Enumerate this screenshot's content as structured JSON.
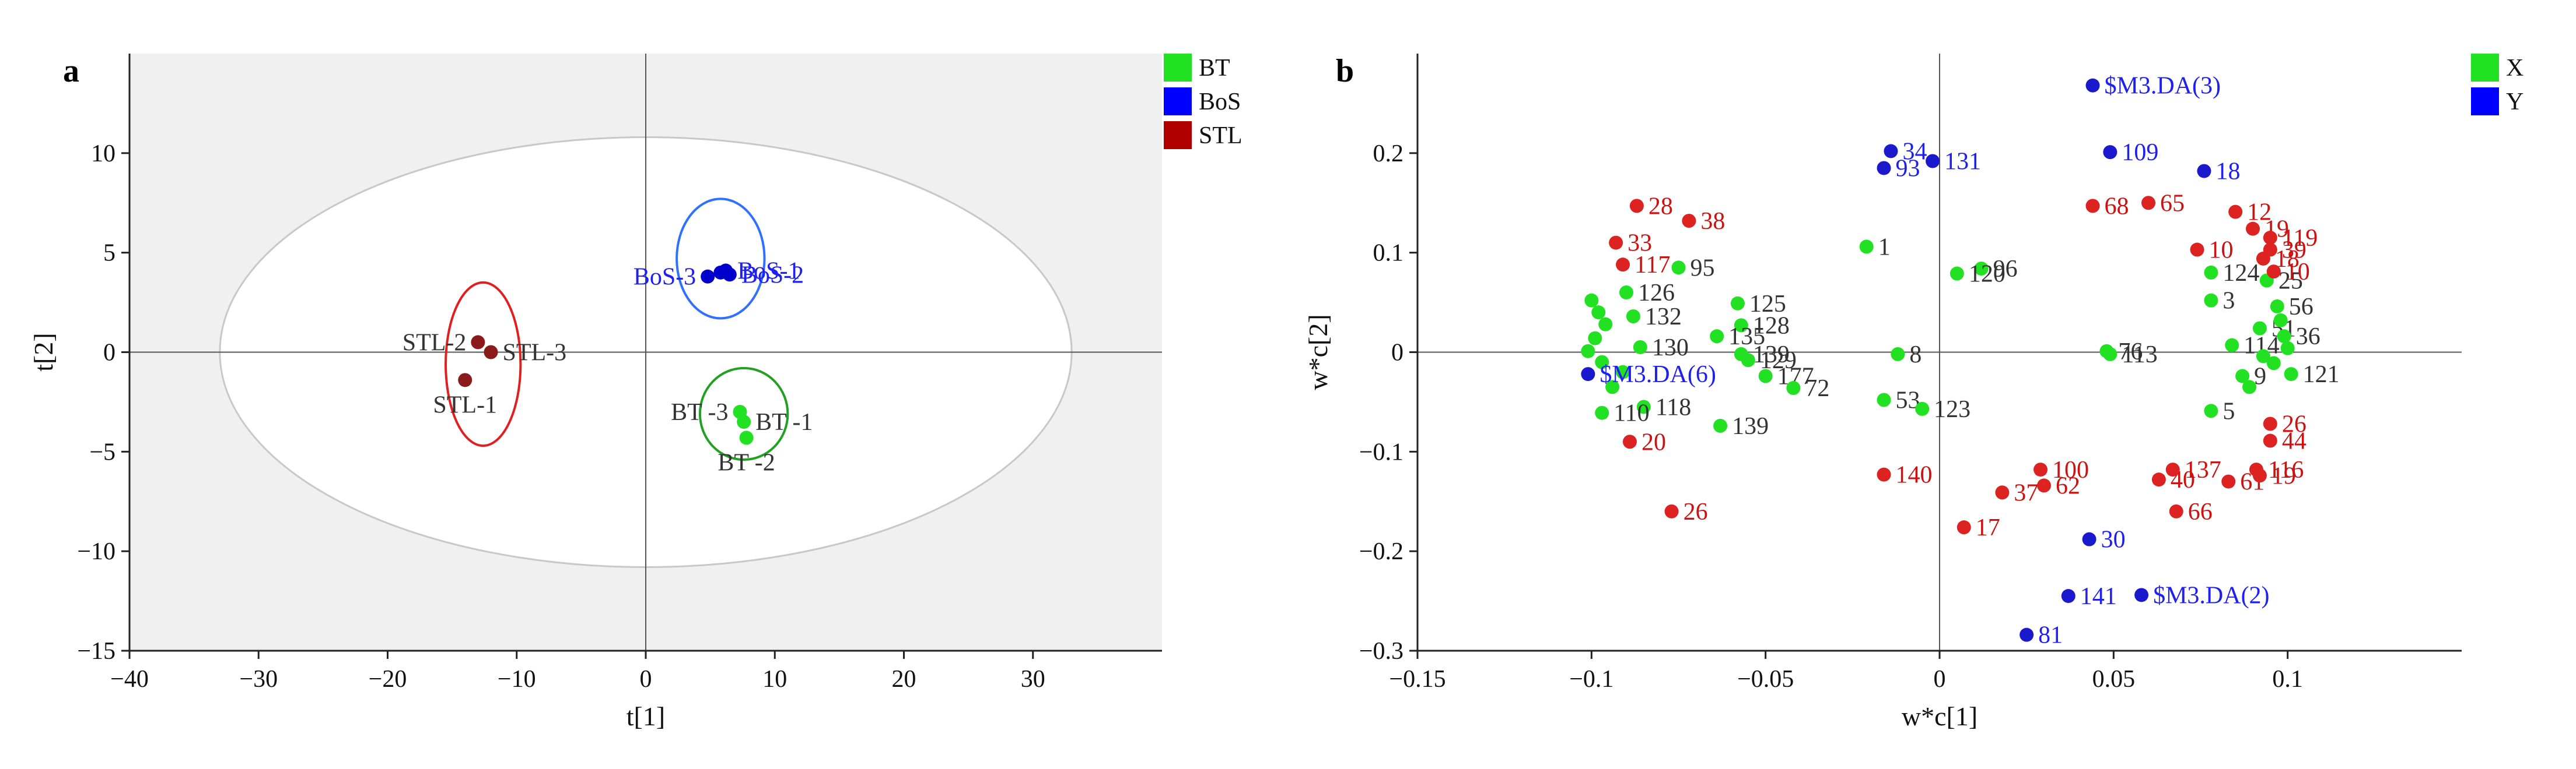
{
  "chart_data": [
    {
      "type": "scatter",
      "panel": "a",
      "xlabel": "t[1]",
      "ylabel": "t[2]",
      "xlim": [
        -40,
        40
      ],
      "ylim": [
        -15,
        15
      ],
      "x_ticks": [
        -40,
        -30,
        -20,
        -10,
        0,
        10,
        20,
        30
      ],
      "y_ticks": [
        -15,
        -10,
        -5,
        0,
        5,
        10
      ],
      "grid": false,
      "shaded_background": true,
      "hotelling_ellipse": {
        "cx": 0,
        "cy": 0,
        "rx": 33,
        "ry": 10.8
      },
      "legend": {
        "placement": "top-right",
        "entries": [
          {
            "label": "BT",
            "color": "#22e022"
          },
          {
            "label": "BoS",
            "color": "#0000ff"
          },
          {
            "label": "STL",
            "color": "#b00000"
          }
        ]
      },
      "series": [
        {
          "name": "BT",
          "color": "#22e022",
          "label_color": "#333333",
          "points": [
            {
              "x": 7.3,
              "y": -3.0,
              "label": "BT -3",
              "label_pos": "left"
            },
            {
              "x": 7.6,
              "y": -3.5,
              "label": "BT -1",
              "label_pos": "right"
            },
            {
              "x": 7.8,
              "y": -4.3,
              "label": "BT -2",
              "label_pos": "below"
            }
          ],
          "group_ellipse": {
            "cx": 7.6,
            "cy": -3.1,
            "rx": 3.4,
            "ry": 2.3,
            "color": "#22a022"
          }
        },
        {
          "name": "BoS",
          "color": "#0000cc",
          "label_color": "#2020ee",
          "points": [
            {
              "x": 4.8,
              "y": 3.8,
              "label": "BoS-3",
              "label_pos": "left"
            },
            {
              "x": 5.8,
              "y": 4.0,
              "label": "",
              "label_pos": "none"
            },
            {
              "x": 6.2,
              "y": 4.1,
              "label": "BoS-1",
              "label_pos": "right"
            },
            {
              "x": 6.5,
              "y": 3.9,
              "label": "BoS-2",
              "label_pos": "right"
            }
          ],
          "group_ellipse": {
            "cx": 5.8,
            "cy": 4.7,
            "rx": 3.4,
            "ry": 3.0,
            "color": "#3070ff"
          }
        },
        {
          "name": "STL",
          "color": "#8b1a1a",
          "label_color": "#333333",
          "points": [
            {
              "x": -13.0,
              "y": 0.5,
              "label": "STL-2",
              "label_pos": "left"
            },
            {
              "x": -12.0,
              "y": 0.0,
              "label": "STL-3",
              "label_pos": "right"
            },
            {
              "x": -14.0,
              "y": -1.4,
              "label": "STL-1",
              "label_pos": "below"
            }
          ],
          "group_ellipse": {
            "cx": -12.6,
            "cy": -0.6,
            "rx": 2.9,
            "ry": 4.1,
            "color": "#e02020"
          }
        }
      ]
    },
    {
      "type": "scatter",
      "panel": "b",
      "xlabel": "w*c[1]",
      "ylabel": "w*c[2]",
      "xlim": [
        -0.15,
        0.15
      ],
      "ylim": [
        -0.3,
        0.3
      ],
      "x_ticks": [
        -0.15,
        -0.1,
        -0.05,
        0,
        0.05,
        0.1
      ],
      "y_ticks": [
        -0.3,
        -0.2,
        -0.1,
        0,
        0.1,
        0.2
      ],
      "grid": false,
      "legend": {
        "placement": "top-right",
        "entries": [
          {
            "label": "X",
            "color": "#22e022"
          },
          {
            "label": "Y",
            "color": "#0000ff"
          }
        ]
      },
      "series": [
        {
          "name": "X (green)",
          "color": "#22e022",
          "label_color": "#333333",
          "points": [
            {
              "x": -0.021,
              "y": 0.106,
              "label": "1"
            },
            {
              "x": 0.012,
              "y": 0.084,
              "label": "96"
            },
            {
              "x": 0.005,
              "y": 0.079,
              "label": "120"
            },
            {
              "x": -0.075,
              "y": 0.085,
              "label": "95"
            },
            {
              "x": -0.058,
              "y": 0.049,
              "label": "125"
            },
            {
              "x": -0.057,
              "y": 0.027,
              "label": "128"
            },
            {
              "x": -0.064,
              "y": 0.016,
              "label": "135"
            },
            {
              "x": -0.057,
              "y": -0.002,
              "label": "139"
            },
            {
              "x": -0.055,
              "y": -0.008,
              "label": "129"
            },
            {
              "x": -0.05,
              "y": -0.024,
              "label": "177"
            },
            {
              "x": -0.042,
              "y": -0.036,
              "label": "72"
            },
            {
              "x": -0.063,
              "y": -0.074,
              "label": "139"
            },
            {
              "x": -0.085,
              "y": -0.055,
              "label": "118"
            },
            {
              "x": -0.097,
              "y": -0.061,
              "label": "110"
            },
            {
              "x": -0.012,
              "y": -0.002,
              "label": "8"
            },
            {
              "x": -0.016,
              "y": -0.048,
              "label": "53"
            },
            {
              "x": -0.005,
              "y": -0.057,
              "label": "123"
            },
            {
              "x": 0.048,
              "y": 0.001,
              "label": "76"
            },
            {
              "x": 0.049,
              "y": -0.002,
              "label": "113"
            },
            {
              "x": 0.078,
              "y": 0.08,
              "label": "124"
            },
            {
              "x": 0.078,
              "y": 0.052,
              "label": "3"
            },
            {
              "x": 0.078,
              "y": -0.059,
              "label": "5"
            },
            {
              "x": 0.084,
              "y": 0.007,
              "label": "114"
            },
            {
              "x": 0.087,
              "y": -0.024,
              "label": "9"
            },
            {
              "x": 0.092,
              "y": 0.024,
              "label": "51"
            },
            {
              "x": 0.094,
              "y": 0.072,
              "label": "25"
            },
            {
              "x": 0.097,
              "y": 0.046,
              "label": "56"
            },
            {
              "x": 0.099,
              "y": 0.016,
              "label": "36"
            },
            {
              "x": 0.101,
              "y": -0.022,
              "label": "121"
            },
            {
              "x": -0.1,
              "y": 0.052,
              "label": ""
            },
            {
              "x": -0.098,
              "y": 0.04,
              "label": ""
            },
            {
              "x": -0.096,
              "y": 0.028,
              "label": ""
            },
            {
              "x": -0.099,
              "y": 0.014,
              "label": ""
            },
            {
              "x": -0.101,
              "y": 0.001,
              "label": ""
            },
            {
              "x": -0.097,
              "y": -0.01,
              "label": ""
            },
            {
              "x": -0.094,
              "y": -0.035,
              "label": ""
            },
            {
              "x": -0.09,
              "y": 0.06,
              "label": "126"
            },
            {
              "x": -0.088,
              "y": 0.036,
              "label": "132"
            },
            {
              "x": -0.086,
              "y": 0.005,
              "label": "130"
            },
            {
              "x": -0.091,
              "y": -0.02,
              "label": ""
            },
            {
              "x": 0.093,
              "y": -0.004,
              "label": ""
            },
            {
              "x": 0.096,
              "y": -0.011,
              "label": ""
            },
            {
              "x": 0.098,
              "y": 0.032,
              "label": ""
            },
            {
              "x": 0.1,
              "y": 0.004,
              "label": ""
            },
            {
              "x": 0.089,
              "y": -0.035,
              "label": ""
            }
          ]
        },
        {
          "name": "X (red)",
          "color": "#dd2222",
          "label_color": "#cc1111",
          "points": [
            {
              "x": -0.087,
              "y": 0.147,
              "label": "28"
            },
            {
              "x": -0.072,
              "y": 0.132,
              "label": "38"
            },
            {
              "x": -0.093,
              "y": 0.11,
              "label": "33"
            },
            {
              "x": -0.091,
              "y": 0.088,
              "label": "117"
            },
            {
              "x": -0.089,
              "y": -0.09,
              "label": "20"
            },
            {
              "x": -0.077,
              "y": -0.16,
              "label": "26"
            },
            {
              "x": -0.016,
              "y": -0.123,
              "label": "140"
            },
            {
              "x": 0.029,
              "y": -0.118,
              "label": "100"
            },
            {
              "x": 0.03,
              "y": -0.134,
              "label": "62"
            },
            {
              "x": 0.018,
              "y": -0.141,
              "label": "37"
            },
            {
              "x": 0.007,
              "y": -0.176,
              "label": "17"
            },
            {
              "x": 0.068,
              "y": -0.16,
              "label": "66"
            },
            {
              "x": 0.063,
              "y": -0.128,
              "label": "40"
            },
            {
              "x": 0.067,
              "y": -0.118,
              "label": "137"
            },
            {
              "x": 0.083,
              "y": -0.13,
              "label": "61"
            },
            {
              "x": 0.091,
              "y": -0.118,
              "label": "116"
            },
            {
              "x": 0.092,
              "y": -0.124,
              "label": "19"
            },
            {
              "x": 0.095,
              "y": -0.089,
              "label": "44"
            },
            {
              "x": 0.095,
              "y": -0.072,
              "label": "26"
            },
            {
              "x": 0.044,
              "y": 0.147,
              "label": "68"
            },
            {
              "x": 0.06,
              "y": 0.15,
              "label": "65"
            },
            {
              "x": 0.074,
              "y": 0.103,
              "label": "10"
            },
            {
              "x": 0.085,
              "y": 0.141,
              "label": "12"
            },
            {
              "x": 0.09,
              "y": 0.124,
              "label": "19"
            },
            {
              "x": 0.095,
              "y": 0.115,
              "label": "119"
            },
            {
              "x": 0.095,
              "y": 0.103,
              "label": "39"
            },
            {
              "x": 0.093,
              "y": 0.094,
              "label": "18"
            },
            {
              "x": 0.096,
              "y": 0.081,
              "label": "10"
            }
          ]
        },
        {
          "name": "Y",
          "color": "#1a1acc",
          "label_color": "#2020ee",
          "points": [
            {
              "x": -0.014,
              "y": 0.202,
              "label": "34"
            },
            {
              "x": -0.016,
              "y": 0.185,
              "label": "93"
            },
            {
              "x": -0.002,
              "y": 0.192,
              "label": "131"
            },
            {
              "x": 0.044,
              "y": 0.268,
              "label": "$M3.DA(3)"
            },
            {
              "x": 0.049,
              "y": 0.201,
              "label": "109"
            },
            {
              "x": 0.076,
              "y": 0.182,
              "label": "18"
            },
            {
              "x": 0.043,
              "y": -0.188,
              "label": "30"
            },
            {
              "x": 0.037,
              "y": -0.245,
              "label": "141"
            },
            {
              "x": 0.058,
              "y": -0.244,
              "label": "$M3.DA(2)"
            },
            {
              "x": 0.025,
              "y": -0.284,
              "label": "81"
            },
            {
              "x": -0.101,
              "y": -0.022,
              "label": "$M3.DA(6)"
            }
          ]
        }
      ]
    }
  ]
}
